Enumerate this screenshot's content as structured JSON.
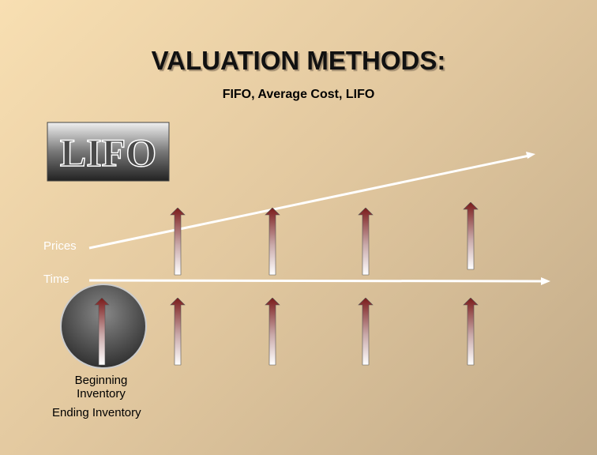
{
  "title": "VALUATION METHODS:",
  "subtitle": "FIFO, Average Cost, LIFO",
  "badge": "LIFO",
  "labels": {
    "prices": "Prices",
    "time": "Time",
    "beginning_inventory": "Beginning Inventory",
    "ending_inventory": "Ending Inventory"
  }
}
